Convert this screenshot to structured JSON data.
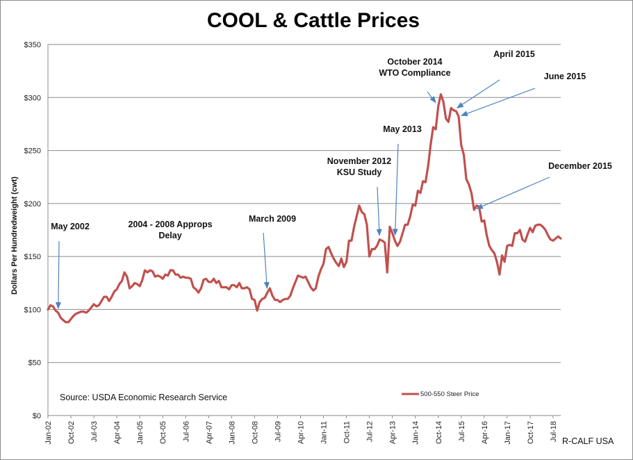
{
  "chart_data": {
    "type": "line",
    "title": "COOL & Cattle Prices",
    "ylabel": "Dollars Per Hundredweight (cwt)",
    "xlabel": "",
    "ylim": [
      0,
      350
    ],
    "yticks": [
      0,
      50,
      100,
      150,
      200,
      250,
      300,
      350
    ],
    "ytick_labels": [
      "$0",
      "$50",
      "$100",
      "$150",
      "$200",
      "$250",
      "$300",
      "$350"
    ],
    "xtick_labels": [
      "Jan-02",
      "Oct-02",
      "Jul-03",
      "Apr-04",
      "Jan-05",
      "Oct-05",
      "Jul-06",
      "Apr-07",
      "Jan-08",
      "Oct-08",
      "Jul-09",
      "Apr-10",
      "Jan-11",
      "Oct-11",
      "Jul-12",
      "Apr-13",
      "Jan-14",
      "Oct-14",
      "Jul-15",
      "Apr-16",
      "Jan-17",
      "Oct-17",
      "Jul-18"
    ],
    "x_range": [
      "Jan-02",
      "Oct-18"
    ],
    "grid": "horizontal",
    "legend_position": "bottom-right",
    "source": "Source:  USDA Economic Research Service",
    "credit": "R-CALF USA",
    "line_color": "#c0504d",
    "arrow_color": "#4f81bd",
    "series": [
      {
        "name": "500-550 Steer Price",
        "points": [
          [
            "2002-01",
            100
          ],
          [
            "2002-02",
            104
          ],
          [
            "2002-03",
            103
          ],
          [
            "2002-04",
            99
          ],
          [
            "2002-05",
            97
          ],
          [
            "2002-06",
            92
          ],
          [
            "2002-07",
            90
          ],
          [
            "2002-08",
            88
          ],
          [
            "2002-09",
            88
          ],
          [
            "2002-10",
            91
          ],
          [
            "2002-11",
            94
          ],
          [
            "2002-12",
            96
          ],
          [
            "2003-01",
            97
          ],
          [
            "2003-02",
            98
          ],
          [
            "2003-03",
            98
          ],
          [
            "2003-04",
            97
          ],
          [
            "2003-05",
            99
          ],
          [
            "2003-06",
            102
          ],
          [
            "2003-07",
            105
          ],
          [
            "2003-08",
            103
          ],
          [
            "2003-09",
            104
          ],
          [
            "2003-10",
            108
          ],
          [
            "2003-11",
            112
          ],
          [
            "2003-12",
            112
          ],
          [
            "2004-01",
            108
          ],
          [
            "2004-02",
            112
          ],
          [
            "2004-03",
            117
          ],
          [
            "2004-04",
            119
          ],
          [
            "2004-05",
            124
          ],
          [
            "2004-06",
            127
          ],
          [
            "2004-07",
            135
          ],
          [
            "2004-08",
            131
          ],
          [
            "2004-09",
            120
          ],
          [
            "2004-10",
            122
          ],
          [
            "2004-11",
            125
          ],
          [
            "2004-12",
            124
          ],
          [
            "2005-01",
            122
          ],
          [
            "2005-02",
            128
          ],
          [
            "2005-03",
            137
          ],
          [
            "2005-04",
            135
          ],
          [
            "2005-05",
            137
          ],
          [
            "2005-06",
            136
          ],
          [
            "2005-07",
            131
          ],
          [
            "2005-08",
            132
          ],
          [
            "2005-09",
            131
          ],
          [
            "2005-10",
            129
          ],
          [
            "2005-11",
            133
          ],
          [
            "2005-12",
            132
          ],
          [
            "2006-01",
            137
          ],
          [
            "2006-02",
            137
          ],
          [
            "2006-03",
            133
          ],
          [
            "2006-04",
            133
          ],
          [
            "2006-05",
            130
          ],
          [
            "2006-06",
            131
          ],
          [
            "2006-07",
            130
          ],
          [
            "2006-08",
            130
          ],
          [
            "2006-09",
            129
          ],
          [
            "2006-10",
            121
          ],
          [
            "2006-11",
            119
          ],
          [
            "2006-12",
            116
          ],
          [
            "2007-01",
            120
          ],
          [
            "2007-02",
            128
          ],
          [
            "2007-03",
            129
          ],
          [
            "2007-04",
            126
          ],
          [
            "2007-05",
            126
          ],
          [
            "2007-06",
            129
          ],
          [
            "2007-07",
            125
          ],
          [
            "2007-08",
            127
          ],
          [
            "2007-09",
            121
          ],
          [
            "2007-10",
            121
          ],
          [
            "2007-11",
            121
          ],
          [
            "2007-12",
            119
          ],
          [
            "2008-01",
            123
          ],
          [
            "2008-02",
            123
          ],
          [
            "2008-03",
            121
          ],
          [
            "2008-04",
            125
          ],
          [
            "2008-05",
            120
          ],
          [
            "2008-06",
            120
          ],
          [
            "2008-07",
            121
          ],
          [
            "2008-08",
            119
          ],
          [
            "2008-09",
            110
          ],
          [
            "2008-10",
            109
          ],
          [
            "2008-11",
            99
          ],
          [
            "2008-12",
            107
          ],
          [
            "2009-01",
            110
          ],
          [
            "2009-02",
            111
          ],
          [
            "2009-03",
            116
          ],
          [
            "2009-04",
            120
          ],
          [
            "2009-05",
            113
          ],
          [
            "2009-06",
            109
          ],
          [
            "2009-07",
            109
          ],
          [
            "2009-08",
            107
          ],
          [
            "2009-09",
            109
          ],
          [
            "2009-10",
            110
          ],
          [
            "2009-11",
            110
          ],
          [
            "2009-12",
            113
          ],
          [
            "2010-01",
            120
          ],
          [
            "2010-02",
            126
          ],
          [
            "2010-03",
            132
          ],
          [
            "2010-04",
            131
          ],
          [
            "2010-05",
            130
          ],
          [
            "2010-06",
            131
          ],
          [
            "2010-07",
            126
          ],
          [
            "2010-08",
            121
          ],
          [
            "2010-09",
            118
          ],
          [
            "2010-10",
            120
          ],
          [
            "2010-11",
            131
          ],
          [
            "2010-12",
            138
          ],
          [
            "2011-01",
            143
          ],
          [
            "2011-02",
            157
          ],
          [
            "2011-03",
            159
          ],
          [
            "2011-04",
            153
          ],
          [
            "2011-05",
            148
          ],
          [
            "2011-06",
            144
          ],
          [
            "2011-07",
            141
          ],
          [
            "2011-08",
            148
          ],
          [
            "2011-09",
            140
          ],
          [
            "2011-10",
            145
          ],
          [
            "2011-11",
            165
          ],
          [
            "2011-12",
            165
          ],
          [
            "2012-01",
            178
          ],
          [
            "2012-02",
            188
          ],
          [
            "2012-03",
            198
          ],
          [
            "2012-04",
            192
          ],
          [
            "2012-05",
            190
          ],
          [
            "2012-06",
            180
          ],
          [
            "2012-07",
            150
          ],
          [
            "2012-08",
            157
          ],
          [
            "2012-09",
            157
          ],
          [
            "2012-10",
            160
          ],
          [
            "2012-11",
            166
          ],
          [
            "2012-12",
            165
          ],
          [
            "2013-01",
            163
          ],
          [
            "2013-02",
            135
          ],
          [
            "2013-03",
            178
          ],
          [
            "2013-04",
            172
          ],
          [
            "2013-05",
            165
          ],
          [
            "2013-06",
            160
          ],
          [
            "2013-07",
            164
          ],
          [
            "2013-08",
            172
          ],
          [
            "2013-09",
            180
          ],
          [
            "2013-10",
            180
          ],
          [
            "2013-11",
            188
          ],
          [
            "2013-12",
            199
          ],
          [
            "2014-01",
            198
          ],
          [
            "2014-02",
            212
          ],
          [
            "2014-03",
            210
          ],
          [
            "2014-04",
            221
          ],
          [
            "2014-05",
            220
          ],
          [
            "2014-06",
            235
          ],
          [
            "2014-07",
            255
          ],
          [
            "2014-08",
            272
          ],
          [
            "2014-09",
            270
          ],
          [
            "2014-10",
            292
          ],
          [
            "2014-11",
            303
          ],
          [
            "2014-12",
            296
          ],
          [
            "2015-01",
            280
          ],
          [
            "2015-02",
            277
          ],
          [
            "2015-03",
            290
          ],
          [
            "2015-04",
            288
          ],
          [
            "2015-05",
            287
          ],
          [
            "2015-06",
            282
          ],
          [
            "2015-07",
            255
          ],
          [
            "2015-08",
            246
          ],
          [
            "2015-09",
            223
          ],
          [
            "2015-10",
            218
          ],
          [
            "2015-11",
            210
          ],
          [
            "2015-12",
            194
          ],
          [
            "2016-01",
            198
          ],
          [
            "2016-02",
            197
          ],
          [
            "2016-03",
            183
          ],
          [
            "2016-04",
            184
          ],
          [
            "2016-05",
            170
          ],
          [
            "2016-06",
            160
          ],
          [
            "2016-07",
            156
          ],
          [
            "2016-08",
            153
          ],
          [
            "2016-09",
            145
          ],
          [
            "2016-10",
            133
          ],
          [
            "2016-11",
            151
          ],
          [
            "2016-12",
            145
          ],
          [
            "2017-01",
            160
          ],
          [
            "2017-02",
            161
          ],
          [
            "2017-03",
            160
          ],
          [
            "2017-04",
            172
          ],
          [
            "2017-05",
            172
          ],
          [
            "2017-06",
            175
          ],
          [
            "2017-07",
            166
          ],
          [
            "2017-08",
            164
          ],
          [
            "2017-09",
            171
          ],
          [
            "2017-10",
            177
          ],
          [
            "2017-11",
            173
          ],
          [
            "2017-12",
            179
          ],
          [
            "2018-01",
            180
          ],
          [
            "2018-02",
            180
          ],
          [
            "2018-03",
            178
          ],
          [
            "2018-04",
            175
          ],
          [
            "2018-05",
            170
          ],
          [
            "2018-06",
            166
          ],
          [
            "2018-07",
            165
          ],
          [
            "2018-08",
            167
          ],
          [
            "2018-09",
            169
          ],
          [
            "2018-10",
            167
          ]
        ]
      }
    ],
    "annotations": [
      {
        "lines": [
          "May 2002"
        ],
        "date": "2002-05"
      },
      {
        "lines": [
          "2004 - 2008 Approps",
          "Delay"
        ],
        "date": null
      },
      {
        "lines": [
          "March 2009"
        ],
        "date": "2009-03"
      },
      {
        "lines": [
          "November 2012",
          "KSU Study"
        ],
        "date": "2012-11"
      },
      {
        "lines": [
          "May 2013"
        ],
        "date": "2013-05"
      },
      {
        "lines": [
          "October 2014",
          "WTO Compliance"
        ],
        "date": "2014-10"
      },
      {
        "lines": [
          "April 2015"
        ],
        "date": "2015-04"
      },
      {
        "lines": [
          "June 2015"
        ],
        "date": "2015-06"
      },
      {
        "lines": [
          "December 2015"
        ],
        "date": "2015-12"
      }
    ]
  }
}
